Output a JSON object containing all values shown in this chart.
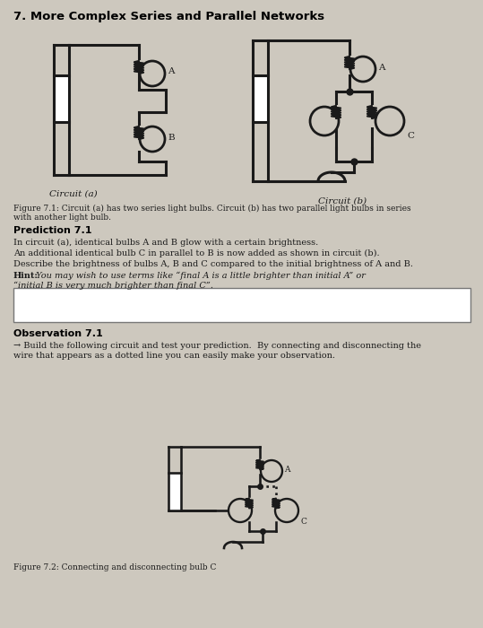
{
  "title": "7. More Complex Series and Parallel Networks",
  "bg_color": "#cdc8be",
  "fig_caption_line1": "Figure 7.1: Circuit (a) has two series light bulbs. Circuit (b) has two parallel light bulbs in series",
  "fig_caption_line2": "with another light bulb.",
  "circuit_a_label": "Circuit (a)",
  "circuit_b_label": "Circuit (b)",
  "prediction_title": "Prediction 7.1",
  "prediction_text1": "In circuit (a), identical bulbs A and B glow with a certain brightness.",
  "prediction_text2": "An additional identical bulb C in parallel to B is now added as shown in circuit (b).",
  "prediction_text3": "Describe the brightness of bulbs A, B and C compared to the initial brightness of A and B.",
  "prediction_hint_bold": "Hint:",
  "prediction_hint_rest": " You may wish to use terms like “final A is a little brighter than initial A” or",
  "prediction_hint_line2": "“initial B is very much brighter than final C”.",
  "observation_title": "Observation 7.1",
  "observation_arrow": "→",
  "observation_text1": " Build the following circuit and test your prediction.  By connecting and disconnecting the",
  "observation_text2": "wire that appears as a dotted line you can easily make your observation.",
  "fig2_caption": "Figure 7.2: Connecting and disconnecting bulb C",
  "line_color": "#1a1a1a",
  "wire_lw": 2.2,
  "title_fontsize": 9.5,
  "body_fontsize": 7.0,
  "label_fontsize": 6.5
}
